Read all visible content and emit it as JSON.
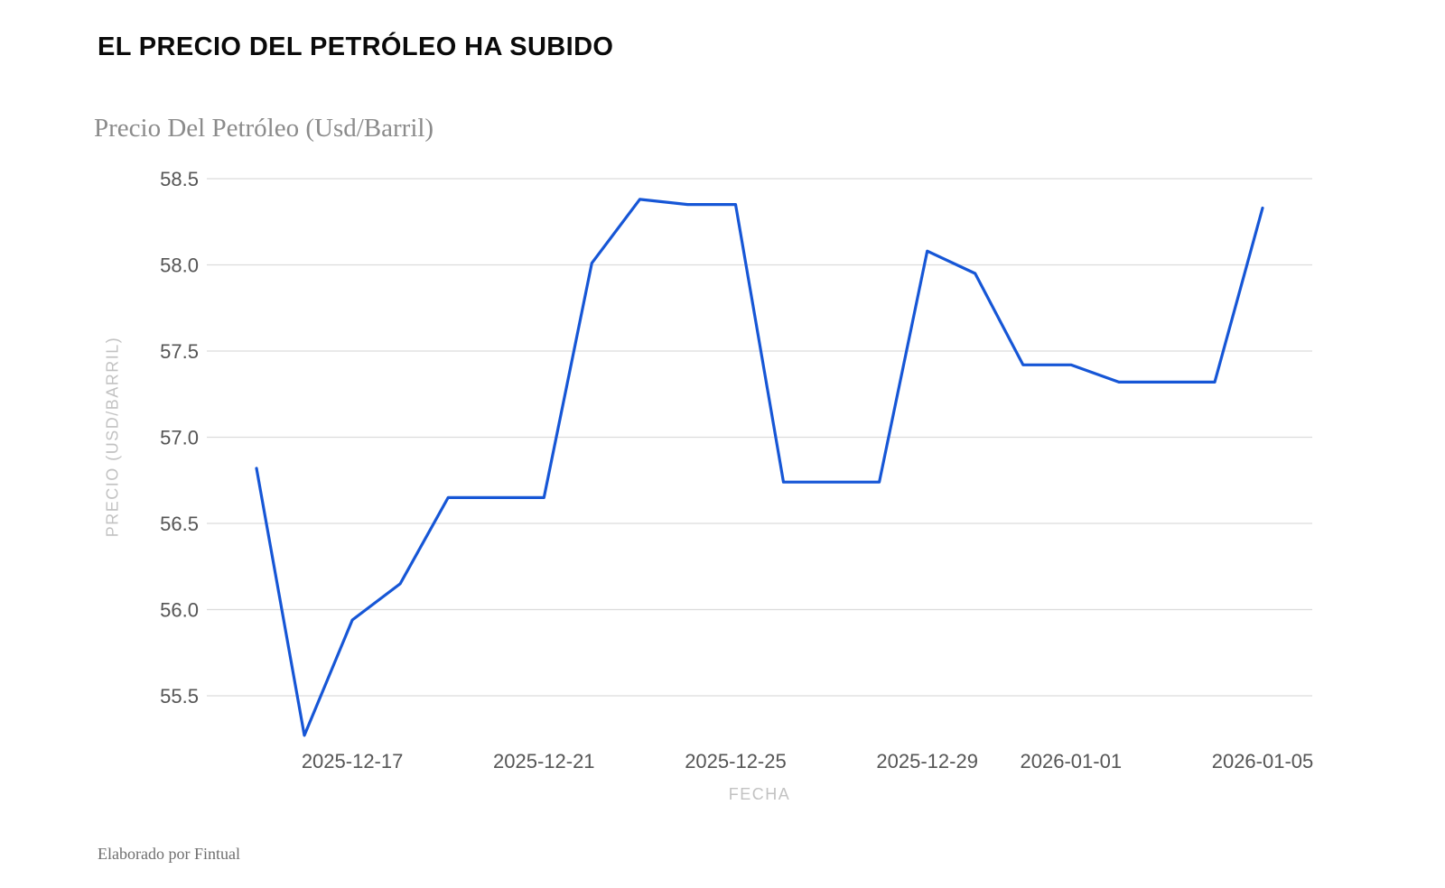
{
  "header": {
    "title": "EL PRECIO DEL PETRÓLEO HA SUBIDO",
    "subtitle": "Precio Del Petróleo (Usd/Barril)"
  },
  "footer": {
    "credit": "Elaborado por Fintual"
  },
  "chart_data": {
    "type": "line",
    "title": "Precio Del Petróleo (Usd/Barril)",
    "xlabel": "FECHA",
    "ylabel": "PRECIO (USD/BARRIL)",
    "x": [
      "2025-12-15",
      "2025-12-16",
      "2025-12-17",
      "2025-12-18",
      "2025-12-19",
      "2025-12-20",
      "2025-12-21",
      "2025-12-22",
      "2025-12-23",
      "2025-12-24",
      "2025-12-25",
      "2025-12-26",
      "2025-12-27",
      "2025-12-28",
      "2025-12-29",
      "2025-12-30",
      "2025-12-31",
      "2026-01-01",
      "2026-01-02",
      "2026-01-03",
      "2026-01-04",
      "2026-01-05"
    ],
    "values": [
      56.82,
      55.27,
      55.94,
      56.15,
      56.65,
      56.65,
      56.65,
      58.01,
      58.38,
      58.35,
      58.35,
      56.74,
      56.74,
      56.74,
      58.08,
      57.95,
      57.42,
      57.42,
      57.32,
      57.32,
      57.32,
      58.33
    ],
    "yticks": [
      55.5,
      56.0,
      56.5,
      57.0,
      57.5,
      58.0,
      58.5
    ],
    "xticks": [
      {
        "index": 2,
        "label": "2025-12-17"
      },
      {
        "index": 6,
        "label": "2025-12-21"
      },
      {
        "index": 10,
        "label": "2025-12-25"
      },
      {
        "index": 14,
        "label": "2025-12-29"
      },
      {
        "index": 17,
        "label": "2026-01-01"
      },
      {
        "index": 21,
        "label": "2026-01-05"
      }
    ],
    "ylim": [
      55.5,
      58.5
    ],
    "grid": "horizontal",
    "legend": "none",
    "colors": {
      "line": "#1656D6",
      "gridline": "#dcdcdc",
      "tick_text": "#555555",
      "axis_title_text": "#c2c2c2",
      "background": "#ffffff"
    }
  }
}
